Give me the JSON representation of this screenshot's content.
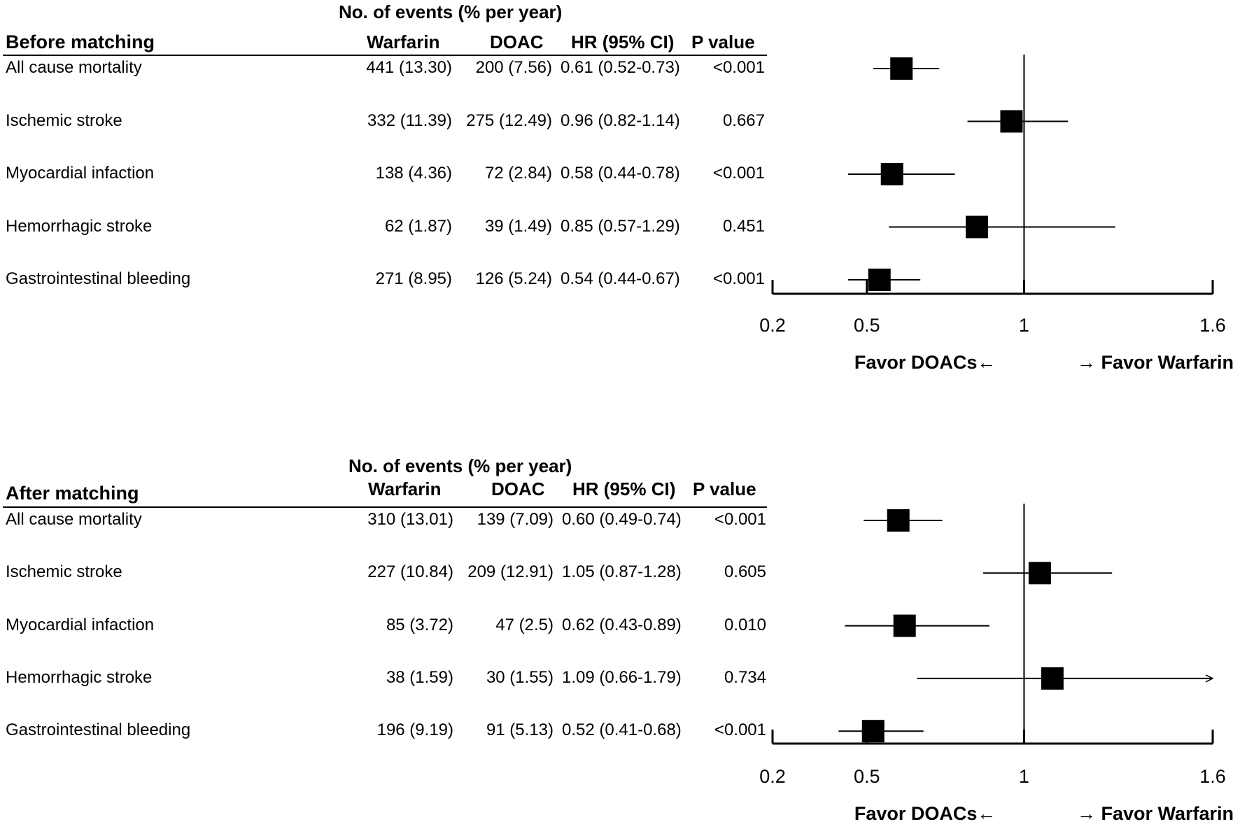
{
  "chart_data": [
    {
      "type": "forest",
      "section_title": "Before matching",
      "group_header": "No. of events (% per year)",
      "columns": [
        "Warfarin",
        "DOAC",
        "HR (95% CI)",
        "P value"
      ],
      "rows": [
        {
          "label": "All cause mortality",
          "warfarin": "441 (13.30)",
          "doac": "200 (7.56)",
          "hr_text": "0.61 (0.52-0.73)",
          "p": "<0.001",
          "hr": 0.61,
          "lo": 0.52,
          "hi": 0.73
        },
        {
          "label": "Ischemic stroke",
          "warfarin": "332 (11.39)",
          "doac": "275 (12.49)",
          "hr_text": "0.96 (0.82-1.14)",
          "p": "0.667",
          "hr": 0.96,
          "lo": 0.82,
          "hi": 1.14
        },
        {
          "label": "Myocardial infaction",
          "warfarin": "138 (4.36)",
          "doac": "72 (2.84)",
          "hr_text": "0.58 (0.44-0.78)",
          "p": "<0.001",
          "hr": 0.58,
          "lo": 0.44,
          "hi": 0.78
        },
        {
          "label": "Hemorrhagic stroke",
          "warfarin": "62 (1.87)",
          "doac": "39 (1.49)",
          "hr_text": "0.85 (0.57-1.29)",
          "p": "0.451",
          "hr": 0.85,
          "lo": 0.57,
          "hi": 1.29
        },
        {
          "label": "Gastrointestinal bleeding",
          "warfarin": "271 (8.95)",
          "doac": "126 (5.24)",
          "hr_text": "0.54 (0.44-0.67)",
          "p": "<0.001",
          "hr": 0.54,
          "lo": 0.44,
          "hi": 0.67
        }
      ],
      "x_ticks": [
        "0.2",
        "0.5",
        "1",
        "1.6"
      ],
      "x_tick_values": [
        0.2,
        0.5,
        1,
        1.6
      ],
      "xlim": [
        0.2,
        1.6
      ],
      "reference_line": 1,
      "favor_left": "Favor DOACs←",
      "favor_right": "→ Favor Warfarin"
    },
    {
      "type": "forest",
      "section_title": "After matching",
      "group_header": "No. of events (% per year)",
      "columns": [
        "Warfarin",
        "DOAC",
        "HR (95% CI)",
        "P value"
      ],
      "rows": [
        {
          "label": "All cause mortality",
          "warfarin": "310 (13.01)",
          "doac": "139 (7.09)",
          "hr_text": "0.60 (0.49-0.74)",
          "p": "<0.001",
          "hr": 0.6,
          "lo": 0.49,
          "hi": 0.74
        },
        {
          "label": "Ischemic stroke",
          "warfarin": "227 (10.84)",
          "doac": "209 (12.91)",
          "hr_text": "1.05 (0.87-1.28)",
          "p": "0.605",
          "hr": 1.05,
          "lo": 0.87,
          "hi": 1.28
        },
        {
          "label": "Myocardial infaction",
          "warfarin": "85 (3.72)",
          "doac": "47 (2.5)",
          "hr_text": "0.62 (0.43-0.89)",
          "p": "0.010",
          "hr": 0.62,
          "lo": 0.43,
          "hi": 0.89
        },
        {
          "label": "Hemorrhagic stroke",
          "warfarin": "38 (1.59)",
          "doac": "30 (1.55)",
          "hr_text": "1.09 (0.66-1.79)",
          "p": "0.734",
          "hr": 1.09,
          "lo": 0.66,
          "hi": 1.79,
          "truncated_right": true
        },
        {
          "label": "Gastrointestinal bleeding",
          "warfarin": "196 (9.19)",
          "doac": "91 (5.13)",
          "hr_text": "0.52 (0.41-0.68)",
          "p": "<0.001",
          "hr": 0.52,
          "lo": 0.41,
          "hi": 0.68
        }
      ],
      "x_ticks": [
        "0.2",
        "0.5",
        "1",
        "1.6"
      ],
      "x_tick_values": [
        0.2,
        0.5,
        1,
        1.6
      ],
      "xlim": [
        0.2,
        1.6
      ],
      "reference_line": 1,
      "favor_left": "Favor DOACs←",
      "favor_right": "→ Favor Warfarin"
    }
  ]
}
